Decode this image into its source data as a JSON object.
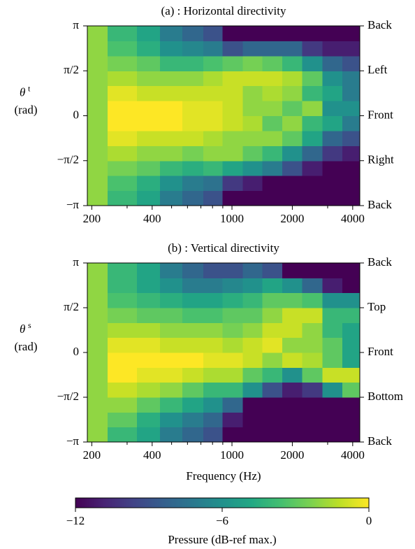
{
  "chart_data": [
    {
      "type": "heatmap",
      "title": "(a) : Horizontal directivity",
      "ylabel_symbol": "θ",
      "ylabel_sup": "t",
      "ylabel_unit": "(rad)",
      "xscale": "log",
      "colormap": "viridis",
      "bins": [
        190,
        240,
        336,
        438,
        565,
        719,
        899,
        1130,
        1420,
        1780,
        2240,
        2820,
        3550,
        4340
      ],
      "ybins": [
        -3.1416,
        -2.618,
        -2.0944,
        -1.5708,
        -1.0472,
        -0.5236,
        0,
        0.5236,
        1.0472,
        1.5708,
        2.0944,
        2.618,
        3.1416
      ],
      "xlim": [
        190,
        4340
      ],
      "xticks": [
        200,
        400,
        1000,
        2000,
        4000
      ],
      "xminorticks": [
        300,
        500,
        600,
        700,
        800,
        900,
        3000
      ],
      "ylim": [
        -3.1416,
        3.1416
      ],
      "yticks": [
        {
          "value": -3.1416,
          "label": "−π"
        },
        {
          "value": -1.5708,
          "label": "−π/2"
        },
        0,
        {
          "value": 1.5708,
          "label": "π/2"
        },
        {
          "value": 3.1416,
          "label": "π"
        }
      ],
      "y2ticks": [
        {
          "value": -3.1416,
          "label": "Back"
        },
        {
          "value": -1.5708,
          "label": "Right"
        },
        {
          "value": 0,
          "label": "Front"
        },
        {
          "value": 1.5708,
          "label": "Left"
        },
        {
          "value": 3.1416,
          "label": "Back"
        }
      ],
      "z": [
        [
          -2,
          -4,
          -5,
          -7,
          -8,
          -9,
          -12,
          -12,
          -12,
          -12,
          -12,
          -12,
          -12
        ],
        [
          -2,
          -3.5,
          -4.5,
          -6,
          -7,
          -7.5,
          -10,
          -11,
          -12,
          -12,
          -12,
          -12,
          -12
        ],
        [
          -2,
          -2.5,
          -3,
          -4,
          -4.5,
          -4,
          -5,
          -6,
          -7,
          -9,
          -11,
          -12,
          -12
        ],
        [
          -2,
          -1.5,
          -2,
          -2,
          -2.5,
          -2,
          -2,
          -3,
          -4,
          -6,
          -8,
          -10,
          -11
        ],
        [
          -2,
          -0.5,
          -1,
          -1,
          -1,
          -1.5,
          -2,
          -2,
          -2,
          -3,
          -5,
          -8,
          -9
        ],
        [
          -2,
          0,
          0,
          0,
          -0.5,
          -0.5,
          -1,
          -1.5,
          -3,
          -2,
          -4,
          -5,
          -7
        ],
        [
          -2,
          0,
          0,
          0,
          -0.5,
          -0.5,
          -1,
          -2,
          -2,
          -3,
          -2,
          -6,
          -6
        ],
        [
          -2,
          -0.5,
          -1,
          -1,
          -1,
          -1,
          -1,
          -2,
          -1.5,
          -2,
          -4,
          -5,
          -7
        ],
        [
          -2,
          -1.5,
          -2,
          -2,
          -2,
          -1.5,
          -1,
          -1,
          -1,
          -1.5,
          -3,
          -6,
          -7
        ],
        [
          -2,
          -2.5,
          -3,
          -4,
          -4,
          -3.5,
          -3,
          -2.5,
          -3,
          -4,
          -6,
          -8,
          -9
        ],
        [
          -2,
          -3.5,
          -4.5,
          -6,
          -6.5,
          -7,
          -9,
          -8,
          -8,
          -8,
          -10,
          -11,
          -11
        ],
        [
          -2,
          -4,
          -5,
          -7,
          -8,
          -9,
          -12,
          -12,
          -12,
          -12,
          -12,
          -12,
          -12
        ]
      ]
    },
    {
      "type": "heatmap",
      "title": "(b) : Vertical directivity",
      "ylabel_symbol": "θ",
      "ylabel_sup": "s",
      "ylabel_unit": "(rad)",
      "xlabel": "Frequency (Hz)",
      "xscale": "log",
      "colormap": "viridis",
      "bins": [
        190,
        240,
        336,
        438,
        565,
        719,
        899,
        1130,
        1420,
        1780,
        2240,
        2820,
        3550,
        4340
      ],
      "ybins": [
        -3.1416,
        -2.618,
        -2.0944,
        -1.5708,
        -1.0472,
        -0.5236,
        0,
        0.5236,
        1.0472,
        1.5708,
        2.0944,
        2.618,
        3.1416
      ],
      "xlim": [
        190,
        4340
      ],
      "xticks": [
        200,
        400,
        1000,
        2000,
        4000
      ],
      "xminorticks": [
        300,
        500,
        600,
        700,
        800,
        900,
        3000
      ],
      "ylim": [
        -3.1416,
        3.1416
      ],
      "yticks": [
        {
          "value": -3.1416,
          "label": "−π"
        },
        {
          "value": -1.5708,
          "label": "−π/2"
        },
        0,
        {
          "value": 1.5708,
          "label": "π/2"
        },
        {
          "value": 3.1416,
          "label": "π"
        }
      ],
      "y2ticks": [
        {
          "value": -3.1416,
          "label": "Back"
        },
        {
          "value": -1.5708,
          "label": "Bottom"
        },
        {
          "value": 0,
          "label": "Front"
        },
        {
          "value": 1.5708,
          "label": "Top"
        },
        {
          "value": 3.1416,
          "label": "Back"
        }
      ],
      "z": [
        [
          -2,
          -4,
          -5,
          -7,
          -8,
          -9,
          -12,
          -12,
          -12,
          -12,
          -12,
          -12,
          -12
        ],
        [
          -2,
          -3,
          -4.5,
          -6,
          -7,
          -8,
          -11,
          -12,
          -12,
          -12,
          -12,
          -12,
          -12
        ],
        [
          -2,
          -2,
          -3,
          -4,
          -5,
          -6,
          -8,
          -12,
          -12,
          -12,
          -12,
          -12,
          -12
        ],
        [
          -2,
          -1,
          -1.5,
          -2,
          -3,
          -4,
          -4,
          -6,
          -9,
          -11,
          -10,
          -6,
          -3
        ],
        [
          -2,
          0,
          -0.5,
          -0.5,
          -1,
          -1.5,
          -1.5,
          -3,
          -4,
          -6,
          -3,
          -1,
          -1
        ],
        [
          -2,
          0,
          0,
          0,
          0,
          -0.5,
          -0.5,
          -1,
          -2,
          -1,
          -1.5,
          -3,
          -5
        ],
        [
          -2,
          -0.5,
          -0.5,
          -1,
          -1,
          -1,
          -1.5,
          -1,
          -0.5,
          -2,
          -2,
          -3,
          -5
        ],
        [
          -2,
          -1.5,
          -1.5,
          -2,
          -2,
          -2,
          -2.5,
          -2,
          -1,
          -1,
          -2,
          -4,
          -5
        ],
        [
          -2,
          -2.5,
          -3,
          -3,
          -3.5,
          -3.5,
          -3,
          -3,
          -2,
          -1,
          -1,
          -4,
          -4
        ],
        [
          -2,
          -3.5,
          -4,
          -4.5,
          -5,
          -5,
          -4.5,
          -4,
          -3,
          -3,
          -3.5,
          -6,
          -6
        ],
        [
          -2,
          -4,
          -5,
          -6,
          -7,
          -7,
          -6.5,
          -6,
          -5,
          -6,
          -8,
          -11,
          -12
        ],
        [
          -2,
          -4,
          -5,
          -7,
          -8,
          -9,
          -9,
          -8,
          -9,
          -12,
          -12,
          -12,
          -12
        ]
      ]
    }
  ],
  "colorbar": {
    "label": "Pressure (dB-ref max.)",
    "lim": [
      -12,
      0
    ],
    "ticks": [
      {
        "value": -12,
        "label": "−12"
      },
      {
        "value": -6,
        "label": "−6"
      },
      0
    ]
  }
}
